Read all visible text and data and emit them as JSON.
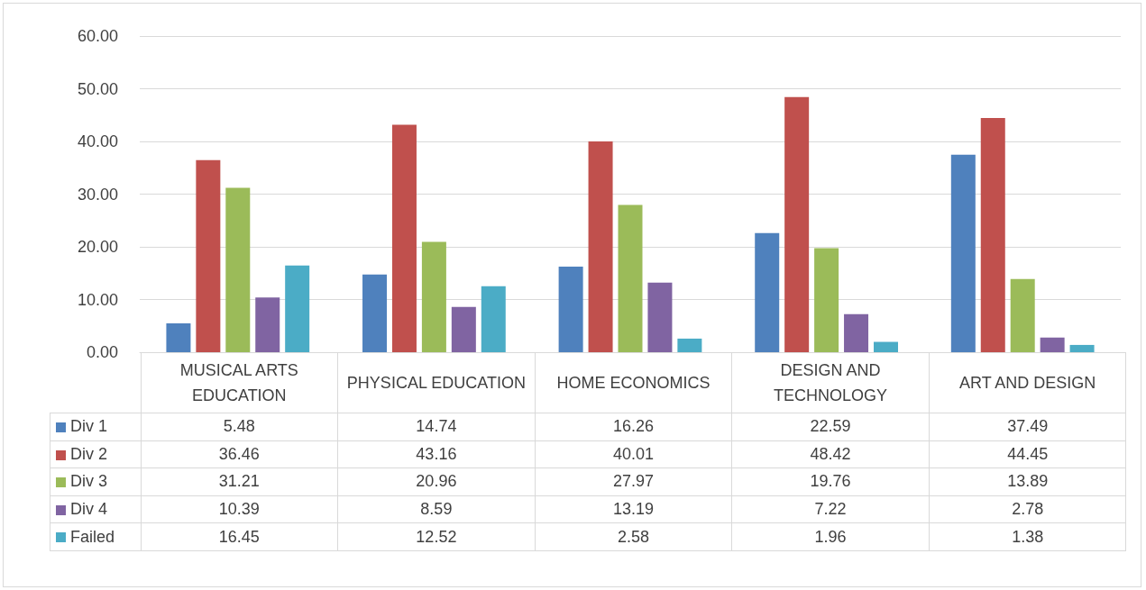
{
  "chart_data": {
    "type": "bar",
    "categories": [
      "MUSICAL ARTS EDUCATION",
      "PHYSICAL EDUCATION",
      "HOME ECONOMICS",
      "DESIGN AND TECHNOLOGY",
      "ART AND DESIGN"
    ],
    "series": [
      {
        "name": "Div 1",
        "color": "#4f81bd",
        "values": [
          5.48,
          14.74,
          16.26,
          22.59,
          37.49
        ]
      },
      {
        "name": "Div 2",
        "color": "#c0504d",
        "values": [
          36.46,
          43.16,
          40.01,
          48.42,
          44.45
        ]
      },
      {
        "name": "Div 3",
        "color": "#9bbb59",
        "values": [
          31.21,
          20.96,
          27.97,
          19.76,
          13.89
        ]
      },
      {
        "name": "Div 4",
        "color": "#8064a2",
        "values": [
          10.39,
          8.59,
          13.19,
          7.22,
          2.78
        ]
      },
      {
        "name": "Failed",
        "color": "#4bacc6",
        "values": [
          16.45,
          12.52,
          2.58,
          1.96,
          1.38
        ]
      }
    ],
    "ylim": [
      0,
      60
    ],
    "yticks": [
      {
        "value": 0,
        "label": "0.00"
      },
      {
        "value": 10,
        "label": "10.00"
      },
      {
        "value": 20,
        "label": "20.00"
      },
      {
        "value": 30,
        "label": "30.00"
      },
      {
        "value": 40,
        "label": "40.00"
      },
      {
        "value": 50,
        "label": "50.00"
      },
      {
        "value": 60,
        "label": "60.00"
      }
    ],
    "grid": "y",
    "legend": "bottom",
    "data_labels": true
  }
}
